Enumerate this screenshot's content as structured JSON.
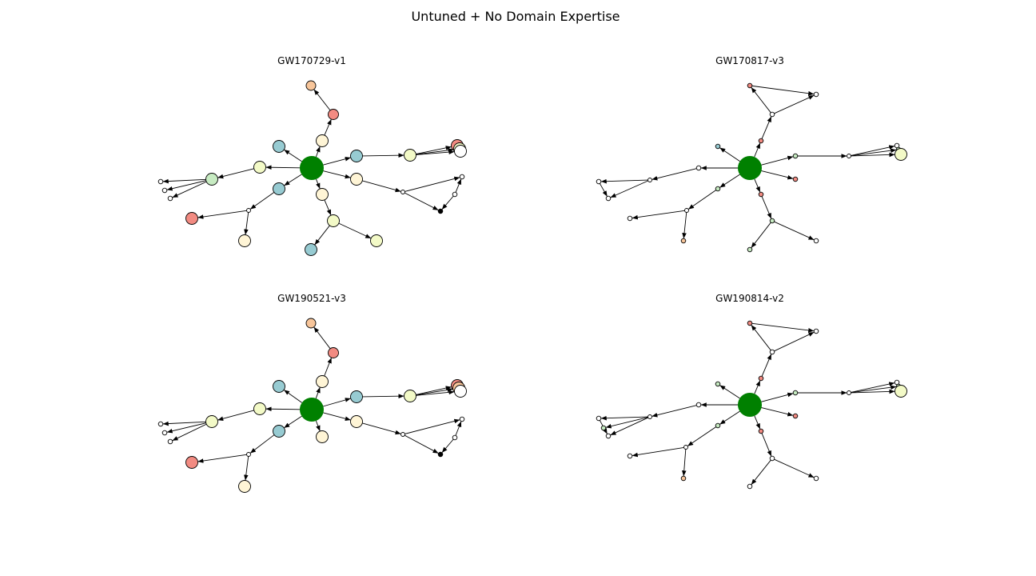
{
  "figure": {
    "title": "Untuned + No Domain Expertise",
    "colors": {
      "hub": "#008000",
      "teal": "#97cbd2",
      "salmon": "#f28b82",
      "peach": "#f7c59a",
      "cream": "#fff5d6",
      "lightyellow": "#f3fac7",
      "mint": "#c7ebc2",
      "white": "#ffffff",
      "black": "#000000"
    },
    "panels": [
      {
        "title": "GW170729-v1",
        "nodes": [
          {
            "id": "hub",
            "color": "hub",
            "hub": true
          },
          {
            "id": "n1",
            "color": "peach"
          },
          {
            "id": "n2",
            "color": "salmon"
          },
          {
            "id": "n3",
            "color": "cream"
          },
          {
            "id": "n4",
            "color": "teal"
          },
          {
            "id": "n5",
            "color": "teal"
          },
          {
            "id": "n6",
            "color": "lightyellow"
          },
          {
            "id": "n7",
            "color": "salmon"
          },
          {
            "id": "n8",
            "color": "lightyellow"
          },
          {
            "id": "n9",
            "color": "white"
          },
          {
            "id": "n10",
            "color": "lightyellow"
          },
          {
            "id": "n11",
            "color": "mint"
          },
          {
            "id": "n12",
            "color": "white"
          },
          {
            "id": "n13",
            "color": "white"
          },
          {
            "id": "n14",
            "color": "white"
          },
          {
            "id": "n15",
            "color": "teal"
          },
          {
            "id": "n16",
            "color": "white"
          },
          {
            "id": "n17",
            "color": "salmon"
          },
          {
            "id": "n18",
            "color": "cream"
          },
          {
            "id": "n19",
            "color": "cream"
          },
          {
            "id": "n20",
            "color": "lightyellow"
          },
          {
            "id": "n21",
            "color": "teal"
          },
          {
            "id": "n22",
            "color": "lightyellow"
          },
          {
            "id": "n23",
            "color": "cream"
          },
          {
            "id": "n24",
            "color": "white"
          },
          {
            "id": "n25",
            "color": "white"
          },
          {
            "id": "n26",
            "color": "white"
          },
          {
            "id": "n27",
            "color": "black"
          }
        ],
        "edges": [
          [
            "hub",
            "n3"
          ],
          [
            "n3",
            "n2"
          ],
          [
            "n2",
            "n1"
          ],
          [
            "hub",
            "n4"
          ],
          [
            "hub",
            "n5"
          ],
          [
            "n5",
            "n6"
          ],
          [
            "n6",
            "n7"
          ],
          [
            "n6",
            "n8"
          ],
          [
            "n6",
            "n9"
          ],
          [
            "hub",
            "n10"
          ],
          [
            "n10",
            "n11"
          ],
          [
            "n11",
            "n12"
          ],
          [
            "n11",
            "n13"
          ],
          [
            "n11",
            "n14"
          ],
          [
            "hub",
            "n15"
          ],
          [
            "n15",
            "n16"
          ],
          [
            "n16",
            "n17"
          ],
          [
            "n16",
            "n18"
          ],
          [
            "hub",
            "n19"
          ],
          [
            "n19",
            "n20"
          ],
          [
            "n20",
            "n21"
          ],
          [
            "n20",
            "n22"
          ],
          [
            "hub",
            "n23"
          ],
          [
            "n23",
            "n24"
          ],
          [
            "n24",
            "n25"
          ],
          [
            "n24",
            "n27"
          ],
          [
            "n26",
            "n25"
          ],
          [
            "n26",
            "n27"
          ]
        ]
      },
      {
        "title": "GW170817-v3",
        "nodes": [
          {
            "id": "hub",
            "color": "hub",
            "hub": true
          },
          {
            "id": "n1",
            "color": "salmon"
          },
          {
            "id": "n2",
            "color": "white"
          },
          {
            "id": "n3",
            "color": "salmon"
          },
          {
            "id": "n4",
            "color": "white"
          },
          {
            "id": "n5",
            "color": "teal"
          },
          {
            "id": "n6",
            "color": "mint"
          },
          {
            "id": "n7",
            "color": "white"
          },
          {
            "id": "n8",
            "color": "white"
          },
          {
            "id": "n9",
            "color": "mint"
          },
          {
            "id": "n10",
            "color": "lightyellow"
          },
          {
            "id": "n11",
            "color": "white"
          },
          {
            "id": "n12",
            "color": "white"
          },
          {
            "id": "n13",
            "color": "white"
          },
          {
            "id": "n14",
            "color": "white"
          },
          {
            "id": "n15",
            "color": "mint"
          },
          {
            "id": "n16",
            "color": "white"
          },
          {
            "id": "n17",
            "color": "white"
          },
          {
            "id": "n18",
            "color": "peach"
          },
          {
            "id": "n19",
            "color": "salmon"
          },
          {
            "id": "n20",
            "color": "salmon"
          },
          {
            "id": "n21",
            "color": "mint"
          },
          {
            "id": "n22",
            "color": "white"
          },
          {
            "id": "n23",
            "color": "mint"
          },
          {
            "id": "n24",
            "color": "white"
          }
        ],
        "edges": [
          [
            "hub",
            "n3"
          ],
          [
            "n3",
            "n2"
          ],
          [
            "n2",
            "n1"
          ],
          [
            "n2",
            "n4"
          ],
          [
            "n1",
            "n4"
          ],
          [
            "hub",
            "n5"
          ],
          [
            "hub",
            "n6"
          ],
          [
            "n6",
            "n7"
          ],
          [
            "n7",
            "n8"
          ],
          [
            "n7",
            "n9"
          ],
          [
            "n7",
            "n10"
          ],
          [
            "hub",
            "n11"
          ],
          [
            "n11",
            "n12"
          ],
          [
            "n12",
            "n13"
          ],
          [
            "n12",
            "n14"
          ],
          [
            "n13",
            "n14"
          ],
          [
            "hub",
            "n15"
          ],
          [
            "n15",
            "n16"
          ],
          [
            "n16",
            "n17"
          ],
          [
            "n16",
            "n18"
          ],
          [
            "hub",
            "n19"
          ],
          [
            "hub",
            "n20"
          ],
          [
            "n20",
            "n21"
          ],
          [
            "n21",
            "n23"
          ],
          [
            "n21",
            "n24"
          ]
        ]
      },
      {
        "title": "GW190521-v3",
        "nodes": [
          {
            "id": "hub",
            "color": "hub",
            "hub": true
          },
          {
            "id": "n1",
            "color": "peach"
          },
          {
            "id": "n2",
            "color": "salmon"
          },
          {
            "id": "n3",
            "color": "cream"
          },
          {
            "id": "n4",
            "color": "teal"
          },
          {
            "id": "n5",
            "color": "teal"
          },
          {
            "id": "n6",
            "color": "lightyellow"
          },
          {
            "id": "n7",
            "color": "salmon"
          },
          {
            "id": "n8",
            "color": "peach"
          },
          {
            "id": "n9",
            "color": "white"
          },
          {
            "id": "n10",
            "color": "lightyellow"
          },
          {
            "id": "n11",
            "color": "lightyellow"
          },
          {
            "id": "n12",
            "color": "white"
          },
          {
            "id": "n13",
            "color": "white"
          },
          {
            "id": "n14",
            "color": "white"
          },
          {
            "id": "n15",
            "color": "teal"
          },
          {
            "id": "n16",
            "color": "white"
          },
          {
            "id": "n17",
            "color": "salmon"
          },
          {
            "id": "n18",
            "color": "cream"
          },
          {
            "id": "n19",
            "color": "cream"
          },
          {
            "id": "n23",
            "color": "cream"
          },
          {
            "id": "n24",
            "color": "white"
          },
          {
            "id": "n25",
            "color": "white"
          },
          {
            "id": "n26",
            "color": "white"
          },
          {
            "id": "n27",
            "color": "black"
          }
        ],
        "edges": [
          [
            "hub",
            "n3"
          ],
          [
            "n3",
            "n2"
          ],
          [
            "n2",
            "n1"
          ],
          [
            "hub",
            "n4"
          ],
          [
            "hub",
            "n5"
          ],
          [
            "n5",
            "n6"
          ],
          [
            "n6",
            "n7"
          ],
          [
            "n6",
            "n8"
          ],
          [
            "n6",
            "n9"
          ],
          [
            "hub",
            "n10"
          ],
          [
            "n10",
            "n11"
          ],
          [
            "n11",
            "n12"
          ],
          [
            "n11",
            "n13"
          ],
          [
            "n11",
            "n14"
          ],
          [
            "hub",
            "n15"
          ],
          [
            "n15",
            "n16"
          ],
          [
            "n16",
            "n17"
          ],
          [
            "n16",
            "n18"
          ],
          [
            "hub",
            "n19"
          ],
          [
            "hub",
            "n23"
          ],
          [
            "n23",
            "n24"
          ],
          [
            "n24",
            "n25"
          ],
          [
            "n24",
            "n27"
          ],
          [
            "n26",
            "n25"
          ],
          [
            "n26",
            "n27"
          ]
        ]
      },
      {
        "title": "GW190814-v2",
        "nodes": [
          {
            "id": "hub",
            "color": "hub",
            "hub": true
          },
          {
            "id": "n1",
            "color": "salmon"
          },
          {
            "id": "n2",
            "color": "white"
          },
          {
            "id": "n3",
            "color": "salmon"
          },
          {
            "id": "n4",
            "color": "white"
          },
          {
            "id": "n5",
            "color": "mint"
          },
          {
            "id": "n6",
            "color": "mint"
          },
          {
            "id": "n7",
            "color": "white"
          },
          {
            "id": "n8",
            "color": "white"
          },
          {
            "id": "n9",
            "color": "mint"
          },
          {
            "id": "n10",
            "color": "lightyellow"
          },
          {
            "id": "n11",
            "color": "white"
          },
          {
            "id": "n12",
            "color": "white"
          },
          {
            "id": "n13",
            "color": "white"
          },
          {
            "id": "n14",
            "color": "white"
          },
          {
            "id": "n14b",
            "color": "mint"
          },
          {
            "id": "n15",
            "color": "mint"
          },
          {
            "id": "n16",
            "color": "white"
          },
          {
            "id": "n17",
            "color": "white"
          },
          {
            "id": "n18",
            "color": "peach"
          },
          {
            "id": "n19",
            "color": "salmon"
          },
          {
            "id": "n20",
            "color": "salmon"
          },
          {
            "id": "n21",
            "color": "white"
          },
          {
            "id": "n22",
            "color": "white"
          },
          {
            "id": "n23",
            "color": "white"
          }
        ],
        "edges": [
          [
            "hub",
            "n3"
          ],
          [
            "n3",
            "n2"
          ],
          [
            "n2",
            "n1"
          ],
          [
            "n2",
            "n4"
          ],
          [
            "n1",
            "n4"
          ],
          [
            "hub",
            "n5"
          ],
          [
            "hub",
            "n6"
          ],
          [
            "n6",
            "n7"
          ],
          [
            "n7",
            "n8"
          ],
          [
            "n7",
            "n9"
          ],
          [
            "n7",
            "n10"
          ],
          [
            "hub",
            "n11"
          ],
          [
            "n11",
            "n12"
          ],
          [
            "n12",
            "n13"
          ],
          [
            "n12",
            "n14"
          ],
          [
            "n12",
            "n14b"
          ],
          [
            "n13",
            "n14"
          ],
          [
            "hub",
            "n15"
          ],
          [
            "n15",
            "n16"
          ],
          [
            "n16",
            "n17"
          ],
          [
            "n16",
            "n18"
          ],
          [
            "hub",
            "n19"
          ],
          [
            "hub",
            "n20"
          ],
          [
            "n20",
            "n21"
          ],
          [
            "n21",
            "n22"
          ],
          [
            "n21",
            "n23"
          ]
        ]
      }
    ]
  }
}
